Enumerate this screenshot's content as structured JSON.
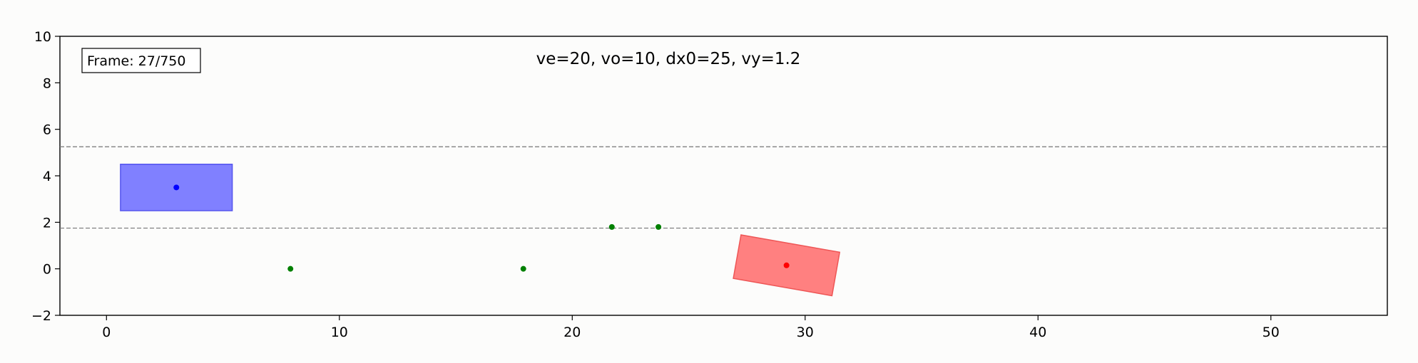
{
  "chart_data": {
    "type": "scatter",
    "title": "ve=20, vo=10, dx0=25, vy=1.2",
    "frame_label": "Frame: 27/750",
    "xlabel": "",
    "ylabel": "",
    "xlim": [
      -2,
      55
    ],
    "ylim": [
      -2,
      10
    ],
    "x_ticks": [
      0,
      10,
      20,
      30,
      40,
      50
    ],
    "y_ticks": [
      -2,
      0,
      2,
      4,
      6,
      8,
      10
    ],
    "y_tick_labels": [
      "−2",
      "0",
      "2",
      "4",
      "6",
      "8",
      "10"
    ],
    "grid": false,
    "lane_lines": [
      1.75,
      5.25
    ],
    "ego_vehicle": {
      "center": [
        3.0,
        3.5
      ],
      "length": 4.8,
      "width": 2.0,
      "heading_deg": 0,
      "fill_color": "#8080ff",
      "edge_color": "#5555ee",
      "center_color": "#0000ff"
    },
    "other_vehicle": {
      "center": [
        29.2,
        0.15
      ],
      "length": 4.3,
      "width": 1.9,
      "heading_deg": -10,
      "fill_color": "#ff8080",
      "edge_color": "#ee5555",
      "center_color": "#ff0000"
    },
    "waypoints": {
      "color": "#008000",
      "points": [
        [
          7.9,
          0
        ],
        [
          17.9,
          0
        ],
        [
          21.7,
          1.8
        ],
        [
          23.7,
          1.8
        ]
      ]
    },
    "colors": {
      "lane_line": "#808080",
      "axes": "#000000"
    }
  }
}
